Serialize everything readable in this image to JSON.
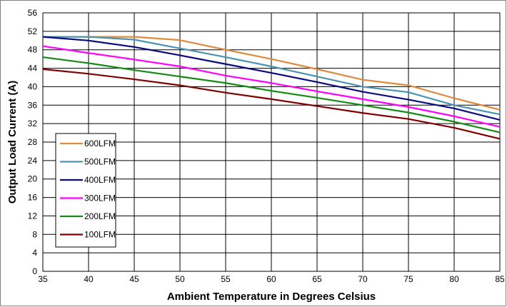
{
  "chart_data": {
    "type": "line",
    "title": "",
    "xlabel": "Ambient Temperature in Degrees Celsius",
    "ylabel": "Output  Load Current (A)",
    "xlim": [
      35,
      85
    ],
    "ylim": [
      0,
      56
    ],
    "xticks": [
      35,
      40,
      45,
      50,
      55,
      60,
      65,
      70,
      75,
      80,
      85
    ],
    "yticks": [
      0,
      4,
      8,
      12,
      16,
      20,
      24,
      28,
      32,
      36,
      40,
      44,
      48,
      52,
      56
    ],
    "grid": true,
    "legend_position": "bottom-left",
    "x": [
      35,
      40,
      45,
      50,
      55,
      60,
      65,
      70,
      75,
      80,
      85
    ],
    "series": [
      {
        "name": "600LFM",
        "color": "#e08a3c",
        "values": [
          50.8,
          50.8,
          50.8,
          50.1,
          48.0,
          46.0,
          43.8,
          41.5,
          40.3,
          37.5,
          35.0
        ]
      },
      {
        "name": "500LFM",
        "color": "#4a93b2",
        "values": [
          50.8,
          50.8,
          50.2,
          48.3,
          46.4,
          44.4,
          42.2,
          40.0,
          38.8,
          36.0,
          34.0
        ]
      },
      {
        "name": "400LFM",
        "color": "#0b0b80",
        "values": [
          50.8,
          50.0,
          48.6,
          46.8,
          44.9,
          43.0,
          41.0,
          38.9,
          37.2,
          35.3,
          32.8
        ]
      },
      {
        "name": "300LFM",
        "color": "#ff00ff",
        "values": [
          48.8,
          47.3,
          45.9,
          44.4,
          42.4,
          40.8,
          39.0,
          37.3,
          35.6,
          33.6,
          31.3
        ]
      },
      {
        "name": "200LFM",
        "color": "#148c14",
        "values": [
          46.4,
          45.1,
          43.6,
          42.2,
          40.8,
          39.1,
          37.6,
          36.0,
          34.4,
          32.4,
          30.1
        ]
      },
      {
        "name": "100LFM",
        "color": "#800000",
        "values": [
          43.8,
          42.8,
          41.6,
          40.3,
          38.7,
          37.3,
          35.8,
          34.3,
          33.0,
          31.1,
          28.7
        ]
      }
    ]
  }
}
